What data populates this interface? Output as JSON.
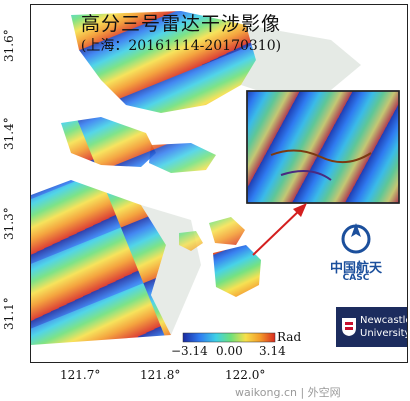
{
  "map": {
    "title": "高分三号雷达干涉影像",
    "subtitle": "(上海：20161114-20170310)"
  },
  "axes": {
    "lat_ticks": [
      "31.6°",
      "31.4°",
      "31.3°",
      "31.1°"
    ],
    "lon_ticks": [
      "121.7°",
      "121.8°",
      "122.0°"
    ]
  },
  "colorbar": {
    "min_label": "−3.14",
    "mid_label": "0.00",
    "max_label": "3.14",
    "unit": "Rad",
    "colors": [
      "#1a2aa0",
      "#2f7bf0",
      "#3ed0e6",
      "#6fe07a",
      "#f6e04a",
      "#f39a2a",
      "#d82a1f"
    ]
  },
  "logos": {
    "casc_cn": "中国航天",
    "casc_en": "CASC",
    "newcastle_line1": "Newcastle",
    "newcastle_line2": "University"
  },
  "watermark": "waikong.cn | 外空网",
  "colors": {
    "inset_arrow": "#d41f1f",
    "casc_blue": "#1b4f9c",
    "newcastle_navy": "#1c2c5e"
  }
}
